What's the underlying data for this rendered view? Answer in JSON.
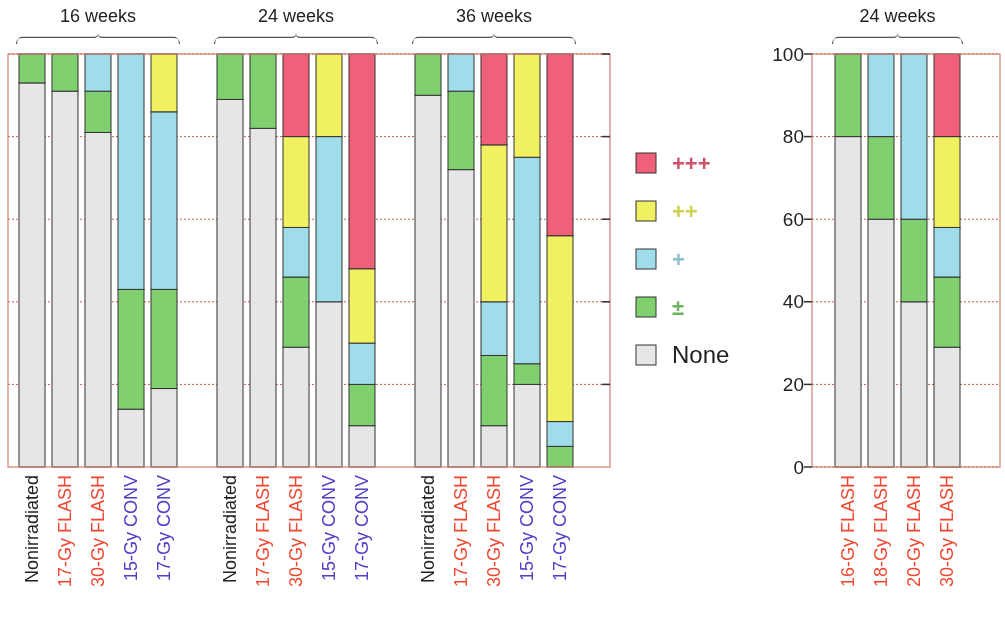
{
  "chart_data": [
    {
      "type": "bar",
      "stacked": true,
      "categories": [
        "Nonirradiated",
        "17-Gy FLASH",
        "30-Gy FLASH",
        "15-Gy CONV",
        "17-Gy CONV",
        null,
        "Nonirradiated",
        "17-Gy FLASH",
        "30-Gy FLASH",
        "15-Gy CONV",
        "17-Gy CONV",
        null,
        "Nonirradiated",
        "17-Gy FLASH",
        "30-Gy FLASH",
        "15-Gy CONV",
        "17-Gy CONV",
        null
      ],
      "series": [
        {
          "name": "None",
          "color": "#e6e6e6",
          "values": [
            93,
            91,
            81,
            14,
            19,
            null,
            89,
            82,
            29,
            40,
            10,
            null,
            90,
            72,
            10,
            20,
            0,
            null
          ]
        },
        {
          "name": "±",
          "color": "#80d070",
          "values": [
            7,
            9,
            10,
            29,
            24,
            null,
            11,
            18,
            17,
            0,
            10,
            null,
            10,
            19,
            17,
            5,
            5,
            null
          ]
        },
        {
          "name": "+",
          "color": "#a0dcea",
          "values": [
            0,
            0,
            9,
            57,
            43,
            null,
            0,
            0,
            12,
            40,
            10,
            null,
            0,
            9,
            13,
            50,
            6,
            null
          ]
        },
        {
          "name": "++",
          "color": "#f0f060",
          "values": [
            0,
            0,
            0,
            0,
            14,
            null,
            0,
            0,
            22,
            20,
            18,
            null,
            0,
            0,
            38,
            25,
            45,
            null
          ]
        },
        {
          "name": "+++",
          "color": "#f0607a",
          "values": [
            0,
            0,
            0,
            0,
            0,
            null,
            0,
            0,
            20,
            0,
            52,
            null,
            0,
            0,
            22,
            0,
            44,
            null
          ]
        }
      ],
      "annotations": [
        "16 weeks",
        "24 weeks",
        "36 weeks"
      ],
      "ylim": [
        0,
        100
      ],
      "yticks": [
        {
          "value": 20,
          "label": null
        },
        {
          "value": 40,
          "label": null
        },
        {
          "value": 60,
          "label": null
        },
        {
          "value": 80,
          "label": null
        },
        {
          "value": 100,
          "label": null
        }
      ],
      "tick_labels": "x",
      "grid": "y",
      "legend": "right"
    },
    {
      "type": "bar",
      "stacked": true,
      "categories": [
        "16-Gy FLASH",
        "18-Gy FLASH",
        "20-Gy FLASH",
        "30-Gy FLASH"
      ],
      "series": [
        {
          "color": "#e6e6e6",
          "values": [
            80,
            60,
            40,
            29
          ]
        },
        {
          "color": "#80d070",
          "values": [
            20,
            20,
            20,
            17
          ]
        },
        {
          "color": "#a0dcea",
          "values": [
            0,
            20,
            40,
            12
          ]
        },
        {
          "color": "#f0f060",
          "values": [
            0,
            0,
            0,
            22
          ]
        },
        {
          "color": "#f0607a",
          "values": [
            0,
            0,
            0,
            20
          ]
        }
      ],
      "annotations": [
        "24 weeks"
      ],
      "ylim": [
        0,
        100
      ],
      "yticks": [
        0,
        20,
        40,
        60,
        80,
        100
      ],
      "grid": "y",
      "legend": false
    }
  ]
}
